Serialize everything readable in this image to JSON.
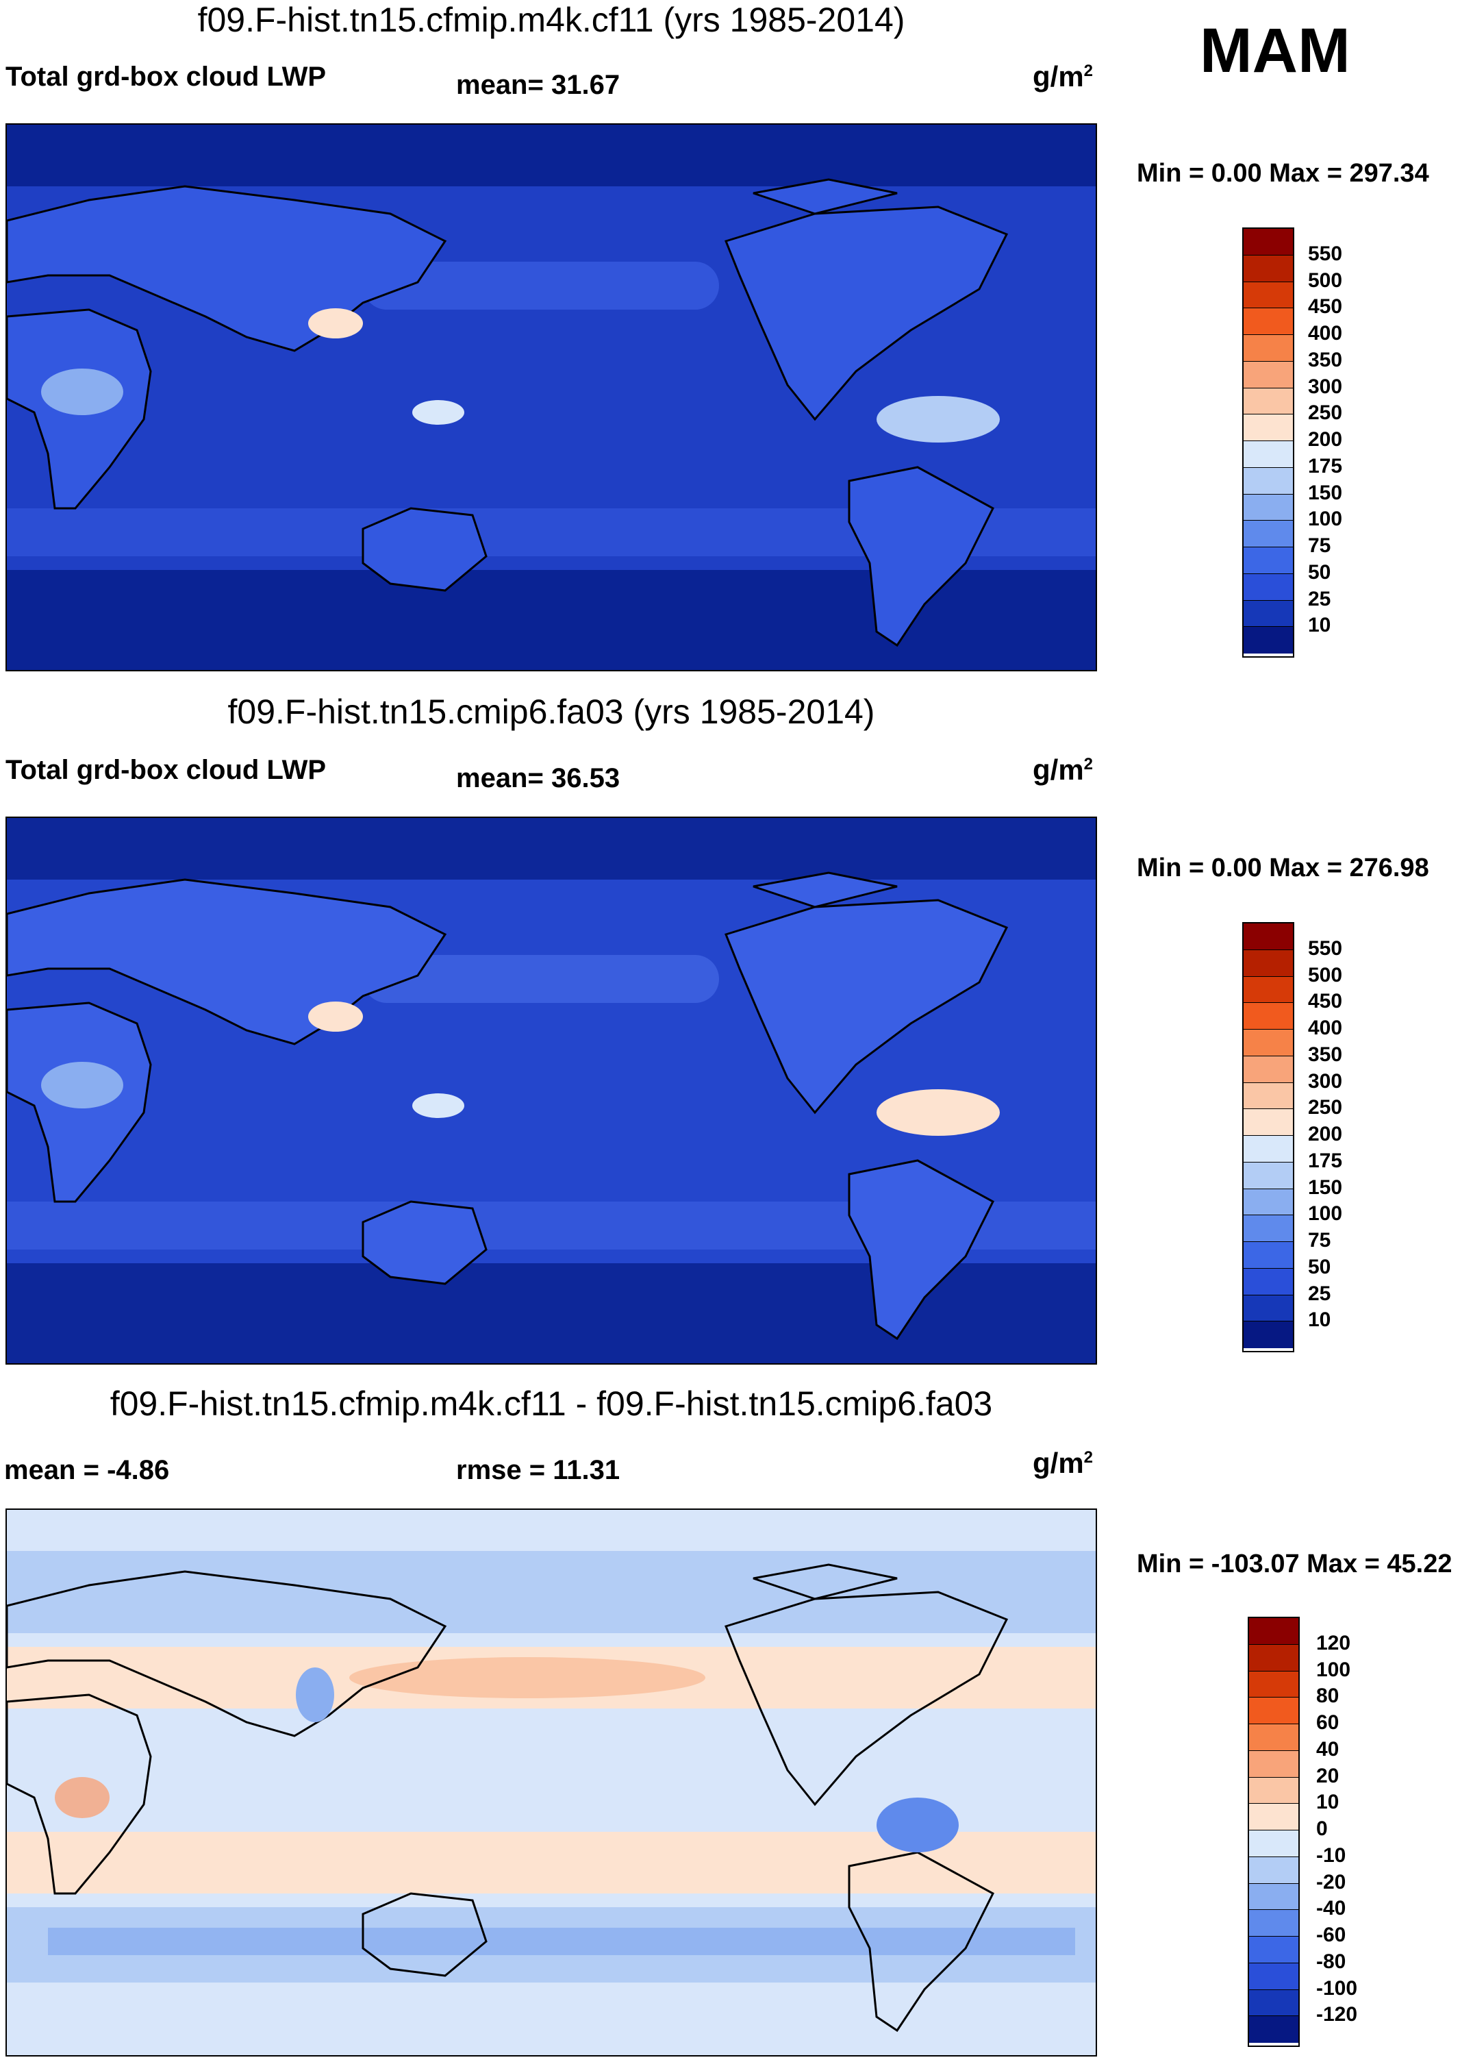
{
  "season": "MAM",
  "units": "g/m",
  "units_sup": "2",
  "panels": [
    {
      "title": "f09.F-hist.tn15.cfmip.m4k.cf11 (yrs 1985-2014)",
      "left_label": "Total grd-box cloud LWP",
      "center_label": "mean=  31.67",
      "minmax": "Min =   0.00 Max = 297.34",
      "ocean_color": "#1f3fc4",
      "land_color": "#3358e0"
    },
    {
      "title": "f09.F-hist.tn15.cmip6.fa03 (yrs 1985-2014)",
      "left_label": "Total grd-box cloud LWP",
      "center_label": "mean=  36.53",
      "minmax": "Min =   0.00 Max = 276.98",
      "ocean_color": "#2446cc",
      "land_color": "#3a5fe4"
    },
    {
      "title": "f09.F-hist.tn15.cfmip.m4k.cf11 - f09.F-hist.tn15.cmip6.fa03",
      "left_label": "mean =  -4.86",
      "center_label": "rmse =  11.31",
      "minmax": "Min = -103.07 Max =  45.22",
      "ocean_color": "#d8e6fa",
      "land_color": "#c4d6f6"
    }
  ],
  "colorbars": {
    "lwp": {
      "labels": [
        "550",
        "500",
        "450",
        "400",
        "350",
        "300",
        "250",
        "200",
        "175",
        "150",
        "100",
        "75",
        "50",
        "25",
        "10"
      ],
      "colors": [
        "#8b0000",
        "#b52000",
        "#d63a08",
        "#f15a1e",
        "#f68248",
        "#f8a47a",
        "#fac6a6",
        "#fde3d0",
        "#d9e8fa",
        "#b3cdf5",
        "#8aaef0",
        "#5f8aec",
        "#3c67e6",
        "#2a4fd9",
        "#1638b8",
        "#061883"
      ]
    },
    "diff": {
      "labels": [
        "120",
        "100",
        "80",
        "60",
        "40",
        "20",
        "10",
        "0",
        "-10",
        "-20",
        "-40",
        "-60",
        "-80",
        "-100",
        "-120"
      ],
      "colors": [
        "#8b0000",
        "#b52000",
        "#d63a08",
        "#f15a1e",
        "#f68248",
        "#f8a47a",
        "#fac6a6",
        "#fde3d0",
        "#d9e8fa",
        "#b3cdf5",
        "#8aaef0",
        "#5f8aec",
        "#3c67e6",
        "#2a4fd9",
        "#1638b8",
        "#061883"
      ]
    }
  },
  "chart_data": [
    {
      "type": "heatmap",
      "title": "f09.F-hist.tn15.cfmip.m4k.cf11 (yrs 1985-2014)",
      "variable": "Total grd-box cloud LWP",
      "units": "g/m2",
      "season": "MAM",
      "mean": 31.67,
      "min": 0.0,
      "max": 297.34,
      "contour_levels": [
        10,
        25,
        50,
        75,
        100,
        150,
        175,
        200,
        250,
        300,
        350,
        400,
        450,
        500,
        550
      ]
    },
    {
      "type": "heatmap",
      "title": "f09.F-hist.tn15.cmip6.fa03 (yrs 1985-2014)",
      "variable": "Total grd-box cloud LWP",
      "units": "g/m2",
      "season": "MAM",
      "mean": 36.53,
      "min": 0.0,
      "max": 276.98,
      "contour_levels": [
        10,
        25,
        50,
        75,
        100,
        150,
        175,
        200,
        250,
        300,
        350,
        400,
        450,
        500,
        550
      ]
    },
    {
      "type": "heatmap",
      "title": "f09.F-hist.tn15.cfmip.m4k.cf11 - f09.F-hist.tn15.cmip6.fa03",
      "units": "g/m2",
      "mean": -4.86,
      "rmse": 11.31,
      "min": -103.07,
      "max": 45.22,
      "contour_levels": [
        -120,
        -100,
        -80,
        -60,
        -40,
        -20,
        -10,
        0,
        10,
        20,
        40,
        60,
        80,
        100,
        120
      ]
    }
  ]
}
